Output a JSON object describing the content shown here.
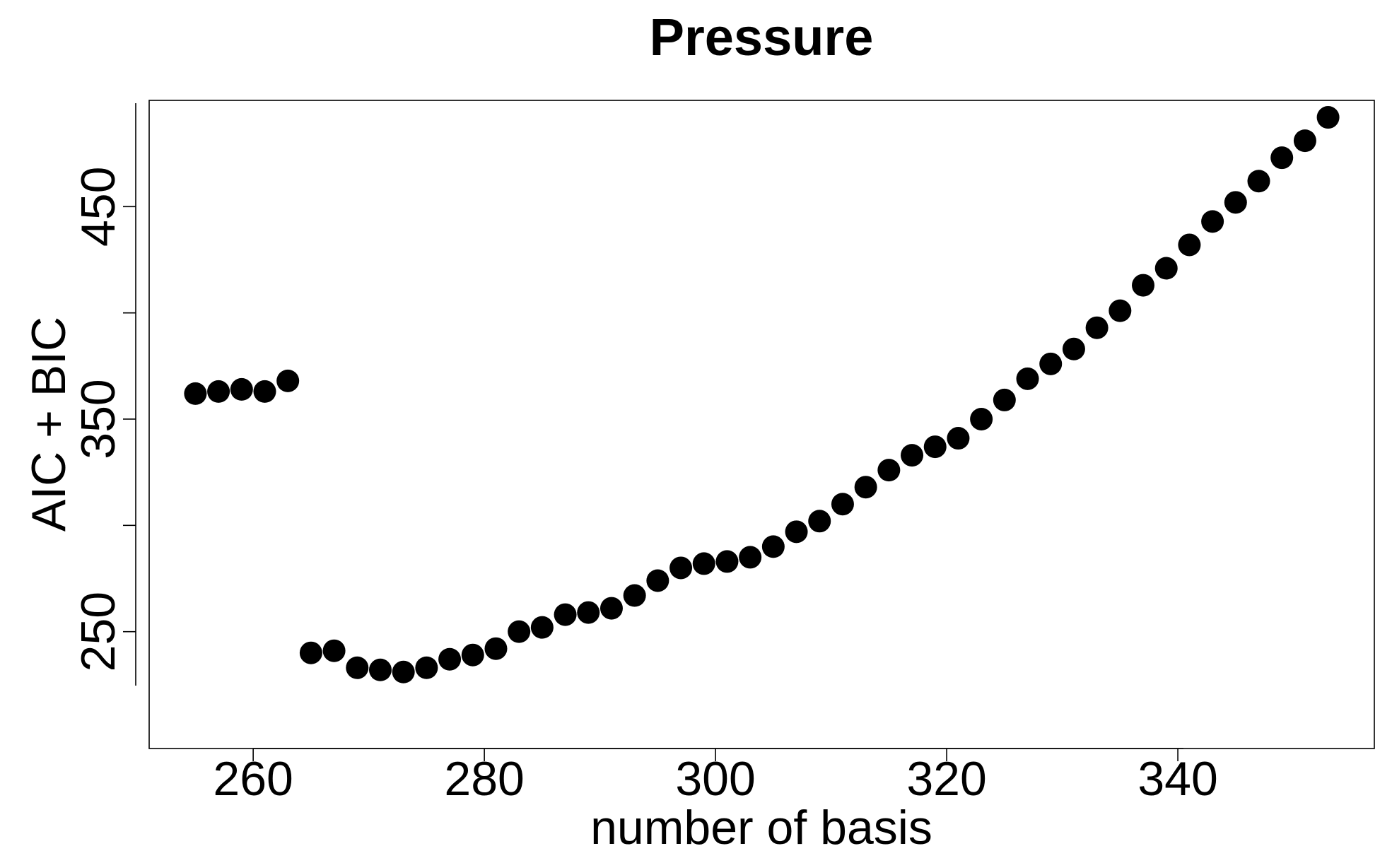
{
  "chart_data": {
    "type": "scatter",
    "title": "Pressure",
    "xlabel": "number of basis",
    "ylabel": "AIC + BIC",
    "xlim": [
      251,
      357
    ],
    "ylim": [
      195,
      500
    ],
    "x_ticks": [
      260,
      280,
      300,
      320,
      340
    ],
    "y_ticks": [
      250,
      300,
      350,
      400,
      450
    ],
    "y_tick_labels": [
      "250",
      "",
      "350",
      "",
      "450"
    ],
    "grid": false,
    "legend": "none",
    "marker_color": "#000000",
    "x": [
      255,
      257,
      259,
      261,
      263,
      265,
      267,
      269,
      271,
      273,
      275,
      277,
      279,
      281,
      283,
      285,
      287,
      289,
      291,
      293,
      295,
      297,
      299,
      301,
      303,
      305,
      307,
      309,
      311,
      313,
      315,
      317,
      319,
      321,
      323,
      325,
      327,
      329,
      331,
      333,
      335,
      337,
      339,
      341,
      343,
      345,
      347,
      349,
      351,
      353
    ],
    "y": [
      362,
      363,
      364,
      363,
      368,
      240,
      241,
      233,
      232,
      231,
      233,
      237,
      239,
      242,
      250,
      252,
      258,
      259,
      261,
      267,
      274,
      280,
      282,
      283,
      285,
      290,
      297,
      302,
      310,
      318,
      326,
      333,
      337,
      341,
      350,
      359,
      369,
      376,
      383,
      393,
      401,
      413,
      421,
      432,
      443,
      452,
      462,
      473,
      481,
      492
    ]
  }
}
